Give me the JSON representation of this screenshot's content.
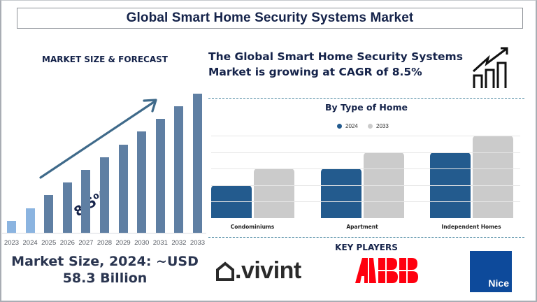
{
  "header": {
    "title": "Global Smart Home Security Systems Market"
  },
  "left_panel": {
    "heading": "MARKET SIZE & FORECAST",
    "cagr_label": "8.5%",
    "market_size_line1": "Market Size, 2024: ~USD",
    "market_size_line2": "58.3 Billion"
  },
  "right_panel": {
    "growth_line1": "The Global Smart Home Security Systems",
    "growth_line2": "Market is growing at CAGR of 8.5%",
    "growth_icon": "growth-chart-icon",
    "type_chart_title": "By Type of Home",
    "key_players_title": "KEY PLAYERS",
    "key_players": [
      {
        "name": "vivint",
        "logo_text": ".vivint",
        "color": "#2a2a2a"
      },
      {
        "name": "ABB",
        "logo_text": "ABB",
        "color": "#ff000f"
      },
      {
        "name": "Nice",
        "logo_text": "Nice",
        "color": "#0d4a9b"
      }
    ]
  },
  "colors": {
    "title_text": "#15234a",
    "historic_bar": "#8bb4e0",
    "forecast_bar": "#5f7fa3",
    "arrow": "#3f6a8a",
    "series_2024": "#235b8e",
    "series_2033": "#cbcbcb",
    "divider": "#4f8aa3"
  },
  "chart_data": [
    {
      "type": "bar",
      "title": "MARKET SIZE & FORECAST",
      "categories": [
        "2023",
        "2024",
        "2025",
        "2026",
        "2027",
        "2028",
        "2029",
        "2030",
        "2031",
        "2032",
        "2033"
      ],
      "values": [
        17,
        35,
        54,
        72,
        90,
        108,
        126,
        145,
        163,
        181,
        199
      ],
      "value_units": "relative bar height (px), no axis shown",
      "historic": [
        "2023",
        "2024"
      ],
      "forecast": [
        "2025",
        "2026",
        "2027",
        "2028",
        "2029",
        "2030",
        "2031",
        "2032",
        "2033"
      ],
      "annotation": "8.5%",
      "xlabel": "",
      "ylabel": "",
      "grid": false
    },
    {
      "type": "bar",
      "title": "By Type of Home",
      "categories": [
        "Condominiums",
        "Apartment",
        "Independent Homes"
      ],
      "series": [
        {
          "name": "2024",
          "values": [
            2,
            3,
            4
          ]
        },
        {
          "name": "2033",
          "values": [
            3,
            4,
            5
          ]
        }
      ],
      "legend_position": "top",
      "grid": true,
      "ylim": [
        0,
        5
      ],
      "xlabel": "",
      "ylabel": ""
    }
  ]
}
